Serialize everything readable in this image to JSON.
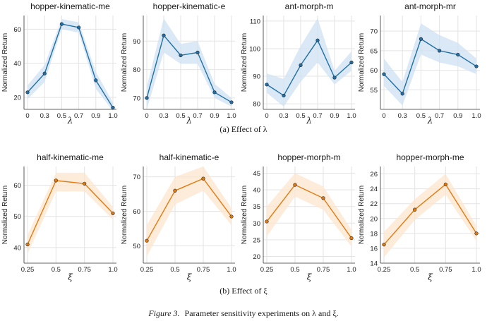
{
  "row_captions": [
    "(a)  Effect of λ",
    "(b)  Effect of ξ"
  ],
  "figure_caption": {
    "label": "Figure 3.",
    "text": "Parameter sensitivity experiments on λ and ξ."
  },
  "chart_data": [
    {
      "type": "line",
      "title": "hopper-kinematic-me",
      "xlabel": "λ",
      "ylabel": "Normalized Return",
      "categories": [
        "0",
        "0.3",
        "0.5",
        "0.7",
        "0.9",
        "1.0"
      ],
      "values": [
        23,
        34,
        63,
        61,
        30,
        14
      ],
      "band_low": [
        19,
        29,
        60,
        58,
        25,
        12
      ],
      "band_high": [
        27,
        39,
        66,
        64,
        35,
        17
      ],
      "ylim": [
        13,
        68
      ],
      "yticks": [
        20,
        40,
        60
      ],
      "color": "#1f6fa8",
      "band_color": "#cfe2f3"
    },
    {
      "type": "line",
      "title": "hopper-kinematic-e",
      "xlabel": "λ",
      "ylabel": "Normalized Return",
      "categories": [
        "0",
        "0.3",
        "0.5",
        "0.7",
        "0.9",
        "1.0"
      ],
      "values": [
        70,
        92,
        85,
        86,
        72,
        68.5
      ],
      "band_low": [
        66,
        86,
        82,
        82,
        70,
        67
      ],
      "band_high": [
        74,
        98,
        89,
        90,
        75,
        70
      ],
      "ylim": [
        66,
        99
      ],
      "yticks": [
        70,
        80,
        90
      ],
      "color": "#1f6fa8",
      "band_color": "#cfe2f3"
    },
    {
      "type": "line",
      "title": "ant-morph-m",
      "xlabel": "λ",
      "ylabel": "Normalized Return",
      "categories": [
        "0",
        "0.3",
        "0.5",
        "0.7",
        "0.9",
        "1.0"
      ],
      "values": [
        87,
        83,
        94,
        103,
        89.5,
        95
      ],
      "band_low": [
        84,
        79,
        88,
        95,
        87,
        92
      ],
      "band_high": [
        91,
        89,
        101,
        111,
        92,
        99
      ],
      "ylim": [
        78,
        112
      ],
      "yticks": [
        80,
        90,
        100,
        110
      ],
      "color": "#1f6fa8",
      "band_color": "#cfe2f3"
    },
    {
      "type": "line",
      "title": "ant-morph-mr",
      "xlabel": "λ",
      "ylabel": "Normalized Return",
      "categories": [
        "0",
        "0.3",
        "0.5",
        "0.7",
        "0.9",
        "1.0"
      ],
      "values": [
        59,
        54,
        68,
        65,
        64,
        61
      ],
      "band_low": [
        56,
        51,
        64,
        62,
        61,
        59
      ],
      "band_high": [
        63,
        57,
        72,
        69,
        67,
        63
      ],
      "ylim": [
        50,
        74
      ],
      "yticks": [
        55,
        60,
        65,
        70
      ],
      "color": "#1f6fa8",
      "band_color": "#cfe2f3"
    },
    {
      "type": "line",
      "title": "half-kinematic-me",
      "xlabel": "ξ",
      "ylabel": "Normalized Return",
      "categories": [
        "0.25",
        "0.5",
        "0.75",
        "1.0"
      ],
      "values": [
        41,
        61.5,
        60.5,
        51
      ],
      "band_low": [
        38,
        58,
        58,
        49
      ],
      "band_high": [
        44,
        64,
        64,
        53
      ],
      "ylim": [
        35,
        66
      ],
      "yticks": [
        40,
        50,
        60
      ],
      "color": "#e07b12",
      "band_color": "#fde6cf"
    },
    {
      "type": "line",
      "title": "half-kinematic-e",
      "xlabel": "ξ",
      "ylabel": "Normalized Return",
      "categories": [
        "0.25",
        "0.5",
        "0.75",
        "1.0"
      ],
      "values": [
        51.5,
        66,
        69.5,
        58.5
      ],
      "band_low": [
        47,
        62,
        66,
        56
      ],
      "band_high": [
        56,
        70,
        73,
        61
      ],
      "ylim": [
        45,
        73
      ],
      "yticks": [
        50,
        60,
        70
      ],
      "color": "#e07b12",
      "band_color": "#fde6cf"
    },
    {
      "type": "line",
      "title": "hopper-morph-m",
      "xlabel": "ξ",
      "ylabel": "Normalized Return",
      "categories": [
        "0.25",
        "0.5",
        "0.75",
        "1.0"
      ],
      "values": [
        30.5,
        41.5,
        37.5,
        25.5
      ],
      "band_low": [
        26,
        38,
        34,
        23
      ],
      "band_high": [
        35,
        45,
        41,
        28
      ],
      "ylim": [
        18,
        47
      ],
      "yticks": [
        20,
        25,
        30,
        35,
        40,
        45
      ],
      "color": "#e07b12",
      "band_color": "#fde6cf"
    },
    {
      "type": "line",
      "title": "hopper-morph-me",
      "xlabel": "ξ",
      "ylabel": "Normalized Return",
      "categories": [
        "0.25",
        "0.5",
        "0.75",
        "1.0"
      ],
      "values": [
        16.5,
        21.2,
        24.6,
        18
      ],
      "band_low": [
        14.8,
        19.8,
        23.2,
        17
      ],
      "band_high": [
        18.2,
        22.6,
        26,
        19
      ],
      "ylim": [
        14,
        27
      ],
      "yticks": [
        14,
        16,
        18,
        20,
        22,
        24,
        26
      ],
      "color": "#e07b12",
      "band_color": "#fde6cf"
    }
  ]
}
